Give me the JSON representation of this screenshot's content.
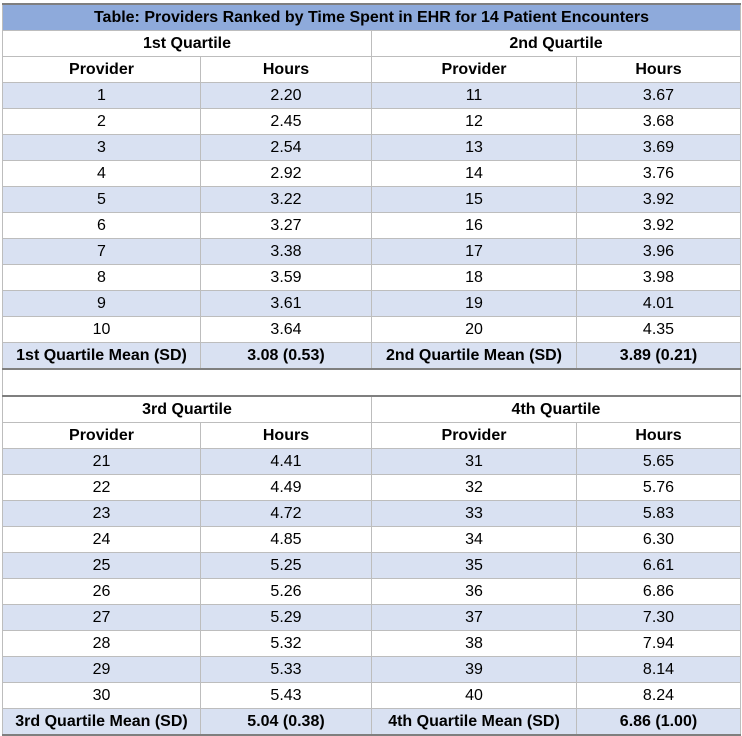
{
  "title": "Table: Providers Ranked by Time Spent in EHR for 14 Patient Encounters",
  "column_headers": {
    "provider": "Provider",
    "hours": "Hours"
  },
  "blocks": [
    {
      "left": {
        "heading": "1st Quartile",
        "rows": [
          {
            "provider": "1",
            "hours": "2.20"
          },
          {
            "provider": "2",
            "hours": "2.45"
          },
          {
            "provider": "3",
            "hours": "2.54"
          },
          {
            "provider": "4",
            "hours": "2.92"
          },
          {
            "provider": "5",
            "hours": "3.22"
          },
          {
            "provider": "6",
            "hours": "3.27"
          },
          {
            "provider": "7",
            "hours": "3.38"
          },
          {
            "provider": "8",
            "hours": "3.59"
          },
          {
            "provider": "9",
            "hours": "3.61"
          },
          {
            "provider": "10",
            "hours": "3.64"
          }
        ],
        "summary_label": "1st Quartile Mean (SD)",
        "summary_value": "3.08 (0.53)"
      },
      "right": {
        "heading": "2nd Quartile",
        "rows": [
          {
            "provider": "11",
            "hours": "3.67"
          },
          {
            "provider": "12",
            "hours": "3.68"
          },
          {
            "provider": "13",
            "hours": "3.69"
          },
          {
            "provider": "14",
            "hours": "3.76"
          },
          {
            "provider": "15",
            "hours": "3.92"
          },
          {
            "provider": "16",
            "hours": "3.92"
          },
          {
            "provider": "17",
            "hours": "3.96"
          },
          {
            "provider": "18",
            "hours": "3.98"
          },
          {
            "provider": "19",
            "hours": "4.01"
          },
          {
            "provider": "20",
            "hours": "4.35"
          }
        ],
        "summary_label": "2nd Quartile Mean (SD)",
        "summary_value": "3.89 (0.21)"
      }
    },
    {
      "left": {
        "heading": "3rd Quartile",
        "rows": [
          {
            "provider": "21",
            "hours": "4.41"
          },
          {
            "provider": "22",
            "hours": "4.49"
          },
          {
            "provider": "23",
            "hours": "4.72"
          },
          {
            "provider": "24",
            "hours": "4.85"
          },
          {
            "provider": "25",
            "hours": "5.25"
          },
          {
            "provider": "26",
            "hours": "5.26"
          },
          {
            "provider": "27",
            "hours": "5.29"
          },
          {
            "provider": "28",
            "hours": "5.32"
          },
          {
            "provider": "29",
            "hours": "5.33"
          },
          {
            "provider": "30",
            "hours": "5.43"
          }
        ],
        "summary_label": "3rd Quartile Mean (SD)",
        "summary_value": "5.04 (0.38)"
      },
      "right": {
        "heading": "4th Quartile",
        "rows": [
          {
            "provider": "31",
            "hours": "5.65"
          },
          {
            "provider": "32",
            "hours": "5.76"
          },
          {
            "provider": "33",
            "hours": "5.83"
          },
          {
            "provider": "34",
            "hours": "6.30"
          },
          {
            "provider": "35",
            "hours": "6.61"
          },
          {
            "provider": "36",
            "hours": "6.86"
          },
          {
            "provider": "37",
            "hours": "7.30"
          },
          {
            "provider": "38",
            "hours": "7.94"
          },
          {
            "provider": "39",
            "hours": "8.14"
          },
          {
            "provider": "40",
            "hours": "8.24"
          }
        ],
        "summary_label": "4th Quartile Mean (SD)",
        "summary_value": "6.86 (1.00)"
      }
    }
  ],
  "colors": {
    "title_fill": "#8eaadb",
    "row_shade": "#d9e1f2",
    "gridline": "#bdbdbd"
  }
}
